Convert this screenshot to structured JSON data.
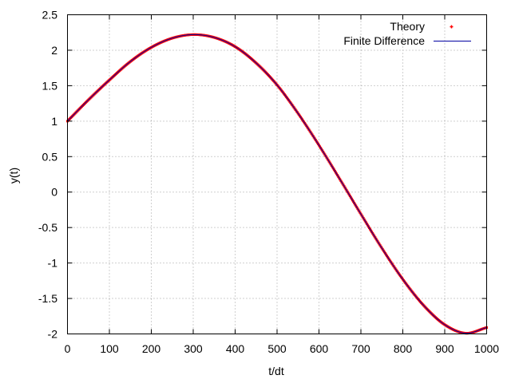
{
  "chart_data": {
    "type": "line",
    "title": "",
    "xlabel": "t/dt",
    "ylabel": "y(t)",
    "xlim": [
      0,
      1000
    ],
    "ylim": [
      -2,
      2.5
    ],
    "xticks": [
      0,
      100,
      200,
      300,
      400,
      500,
      600,
      700,
      800,
      900,
      1000
    ],
    "yticks": [
      -2,
      -1.5,
      -1,
      -0.5,
      0,
      0.5,
      1,
      1.5,
      2,
      2.5
    ],
    "xtick_labels": [
      "0",
      "100",
      "200",
      "300",
      "400",
      "500",
      "600",
      "700",
      "800",
      "900",
      "1000"
    ],
    "ytick_labels": [
      "-2",
      "-1.5",
      "-1",
      "-0.5",
      "0",
      "0.5",
      "1",
      "1.5",
      "2",
      "2.5"
    ],
    "grid": true,
    "legend_position": "top-right",
    "x": [
      0,
      50,
      100,
      150,
      200,
      250,
      300,
      350,
      400,
      450,
      500,
      550,
      600,
      650,
      700,
      750,
      800,
      850,
      900,
      950,
      1000
    ],
    "series": [
      {
        "name": "Theory",
        "style": "points",
        "color": "#ff0000",
        "values": [
          1.0,
          1.3,
          1.58,
          1.84,
          2.04,
          2.17,
          2.22,
          2.18,
          2.05,
          1.82,
          1.51,
          1.11,
          0.66,
          0.18,
          -0.31,
          -0.79,
          -1.23,
          -1.6,
          -1.87,
          -1.99,
          -1.91
        ]
      },
      {
        "name": "Finite Difference",
        "style": "line",
        "color": "#0000a0",
        "values": [
          1.0,
          1.3,
          1.58,
          1.84,
          2.04,
          2.17,
          2.22,
          2.18,
          2.05,
          1.82,
          1.51,
          1.11,
          0.66,
          0.18,
          -0.31,
          -0.79,
          -1.23,
          -1.6,
          -1.87,
          -1.99,
          -1.91
        ]
      }
    ]
  }
}
